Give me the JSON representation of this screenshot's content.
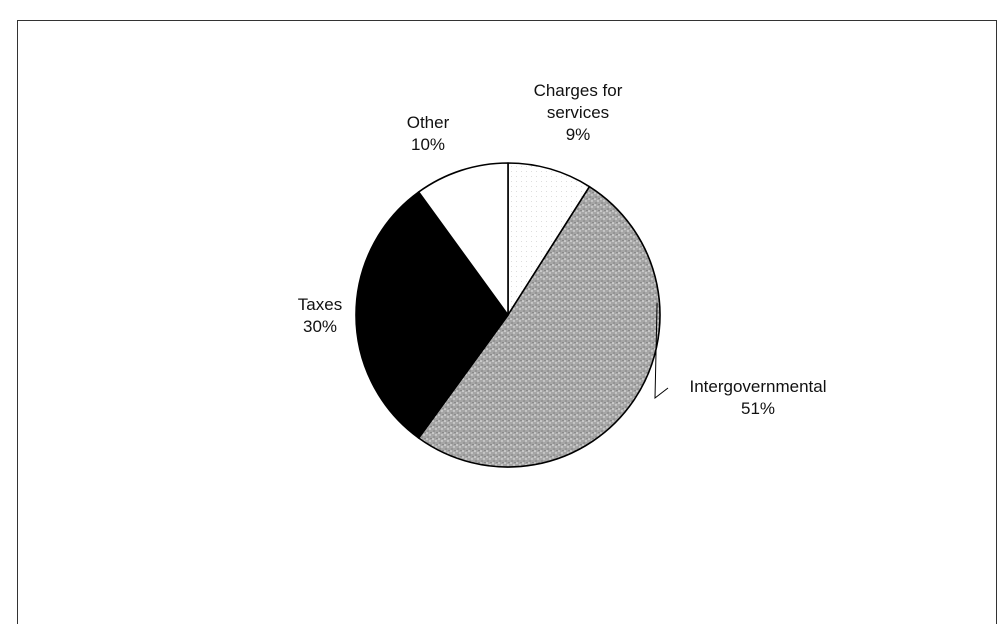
{
  "chart_data": {
    "type": "pie",
    "title": "",
    "slices": [
      {
        "label": "Charges for services",
        "label_lines": [
          "Charges for",
          "services"
        ],
        "value": 9,
        "value_text": "9%",
        "fill": "pattern-dots-light"
      },
      {
        "label": "Intergovernmental",
        "label_lines": [
          "Intergovernmental"
        ],
        "value": 51,
        "value_text": "51%",
        "fill": "pattern-stipple-gray"
      },
      {
        "label": "Taxes",
        "label_lines": [
          "Taxes"
        ],
        "value": 30,
        "value_text": "30%",
        "fill": "#000000"
      },
      {
        "label": "Other",
        "label_lines": [
          "Other"
        ],
        "value": 10,
        "value_text": "10%",
        "fill": "#ffffff"
      }
    ],
    "start_angle_deg": 0,
    "direction": "clockwise",
    "legend": "none",
    "colors": {
      "outline": "#000000",
      "stipple": "#a8a8a8",
      "taxes": "#000000",
      "other": "#ffffff",
      "background": "#ffffff"
    }
  }
}
